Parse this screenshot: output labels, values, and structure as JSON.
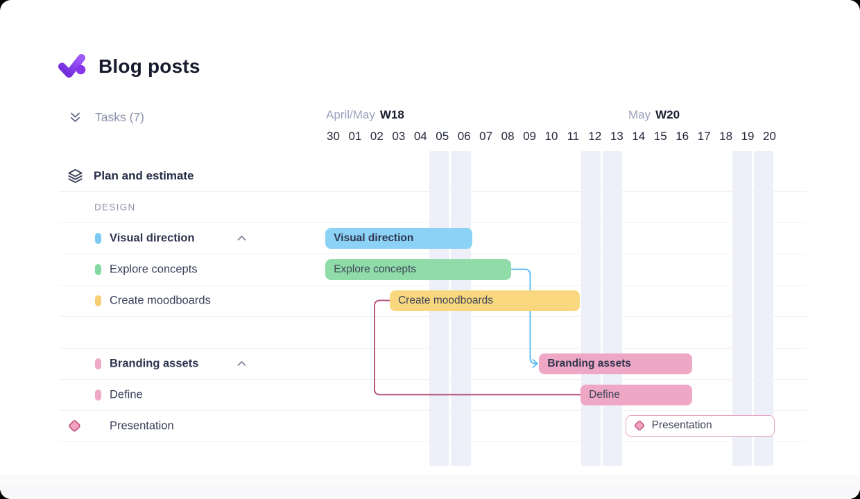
{
  "app": {
    "title": "Blog posts",
    "tasks_summary": "Tasks (7)",
    "logo_colors": {
      "gradient_from": "#6D28D9",
      "gradient_to": "#9F5BFA",
      "dot": "#8637E9"
    }
  },
  "timeline": {
    "weeks": [
      {
        "months": "April/May",
        "week": "W18"
      },
      {
        "months": "May",
        "week": "W20"
      }
    ],
    "dates": [
      "30",
      "01",
      "02",
      "03",
      "04",
      "05",
      "06",
      "07",
      "08",
      "09",
      "10",
      "11",
      "12",
      "13",
      "14",
      "15",
      "16",
      "17",
      "18",
      "19",
      "20"
    ],
    "weekend_indices": [
      5,
      6,
      12,
      13,
      19,
      20
    ],
    "weekend_stripe_color": "#EDEFF9"
  },
  "rows": [
    {
      "kind": "group",
      "label": "Plan and estimate",
      "icon": "layers-icon"
    },
    {
      "kind": "section",
      "label": "DESIGN"
    },
    {
      "kind": "task",
      "label": "Visual direction",
      "parent": true,
      "pill_color": "#7CC9F4",
      "bar": {
        "label": "Visual direction",
        "start_day": 0.15,
        "end_day": 6.9,
        "fill": "#8BD2F6",
        "bold": true
      }
    },
    {
      "kind": "task",
      "label": "Explore concepts",
      "pill_color": "#83D9A2",
      "bar": {
        "label": "Explore concepts",
        "start_day": 0.15,
        "end_day": 8.65,
        "fill": "#8FDCA9"
      }
    },
    {
      "kind": "task",
      "label": "Create moodboards",
      "pill_color": "#F6CF74",
      "bar": {
        "label": "Create moodboards",
        "start_day": 3.1,
        "end_day": 11.8,
        "fill": "#F8D77E"
      }
    },
    {
      "kind": "spacer",
      "label": ""
    },
    {
      "kind": "task",
      "label": "Branding assets",
      "parent": true,
      "pill_color": "#EFA9C8",
      "bar": {
        "label": "Branding assets",
        "start_day": 9.95,
        "end_day": 16.95,
        "fill": "#EEA7C4",
        "bold": true
      }
    },
    {
      "kind": "task",
      "label": "Define",
      "pill_color": "#EFA9C8",
      "bar": {
        "label": "Define",
        "start_day": 11.85,
        "end_day": 16.95,
        "fill": "#EEA7C4"
      }
    },
    {
      "kind": "milestone",
      "label": "Presentation",
      "bar": {
        "label": "Presentation",
        "start_day": 13.9,
        "end_day": 20.75,
        "outline": true
      }
    }
  ],
  "connectors": [
    {
      "from_row": 3,
      "to_row": 6,
      "type": "finish-to-start",
      "color": "#56B7F3",
      "arrow": true
    },
    {
      "from_row": 4,
      "to_row": 7,
      "type": "start-to-start",
      "color": "#AF4876",
      "arrow": false
    }
  ],
  "icon_colors": {
    "layers": "#3A4158",
    "tasks_toggle": "#676D8C",
    "collapse_chevron": "#7E849B",
    "diamond_fill": "#F2A3C1",
    "diamond_stroke": "#C25580"
  }
}
